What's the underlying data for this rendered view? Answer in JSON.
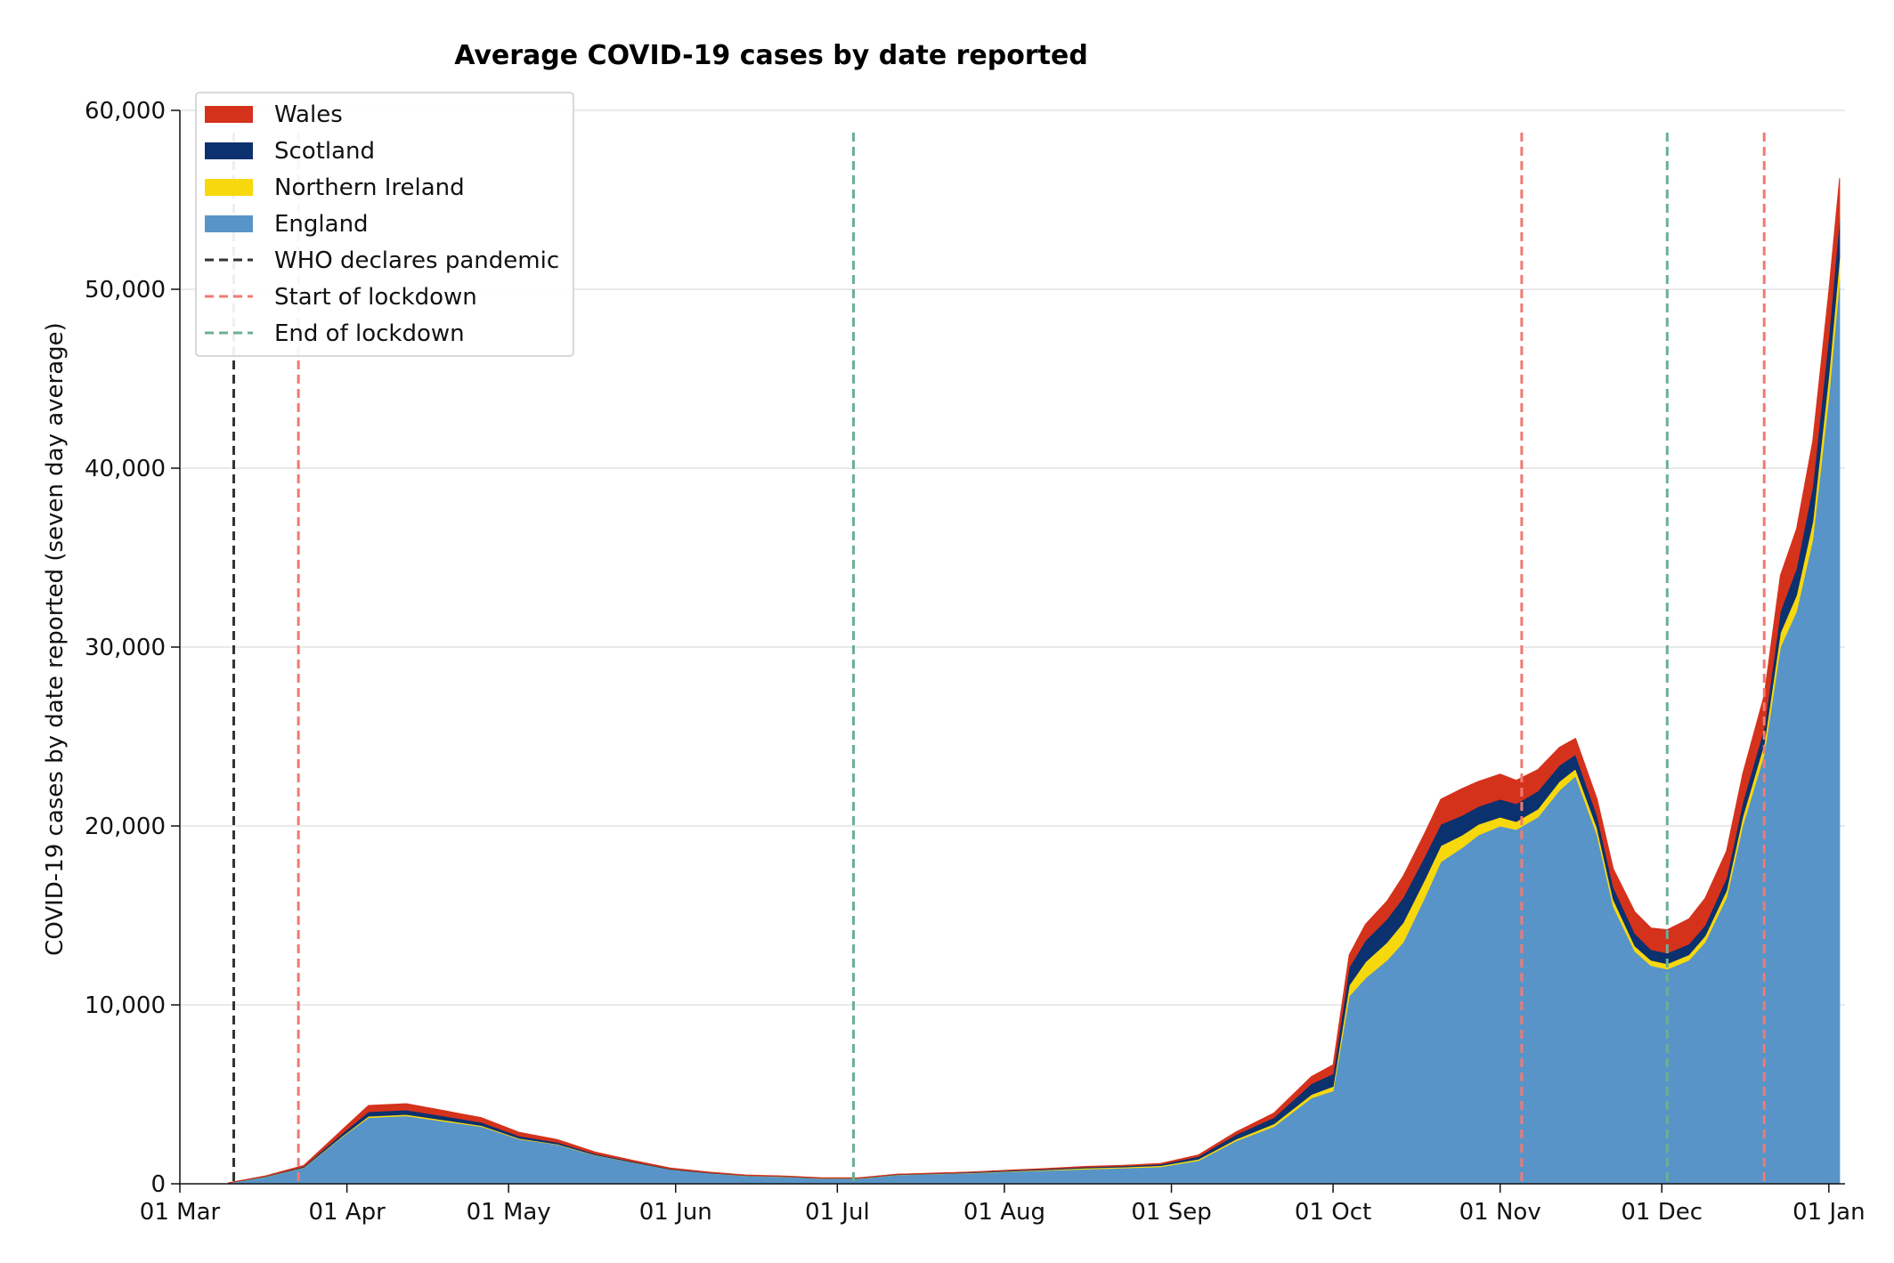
{
  "chart_data": {
    "type": "area",
    "stacked": true,
    "title": "Average COVID-19 cases by date reported",
    "xlabel": "",
    "ylabel": "COVID-19 cases by date reported (seven day average)",
    "ylim": [
      0,
      60000
    ],
    "y_ticks": [
      0,
      10000,
      20000,
      30000,
      40000,
      50000,
      60000
    ],
    "y_tick_labels": [
      "0",
      "10,000",
      "20,000",
      "30,000",
      "40,000",
      "50,000",
      "60,000"
    ],
    "x_range": [
      "2020-03-01",
      "2021-01-04"
    ],
    "x_ticks": [
      "2020-03-01",
      "2020-04-01",
      "2020-05-01",
      "2020-06-01",
      "2020-07-01",
      "2020-08-01",
      "2020-09-01",
      "2020-10-01",
      "2020-11-01",
      "2020-12-01",
      "2021-01-01"
    ],
    "x_tick_labels": [
      "01 Mar",
      "01 Apr",
      "01 May",
      "01 Jun",
      "01 Jul",
      "01 Aug",
      "01 Sep",
      "01 Oct",
      "01 Nov",
      "01 Dec",
      "01 Jan"
    ],
    "grid": "horizontal",
    "legend_position": "top-left",
    "x": [
      "2020-03-10",
      "2020-03-17",
      "2020-03-24",
      "2020-03-31",
      "2020-04-05",
      "2020-04-12",
      "2020-04-19",
      "2020-04-26",
      "2020-05-03",
      "2020-05-10",
      "2020-05-17",
      "2020-05-24",
      "2020-05-31",
      "2020-06-07",
      "2020-06-14",
      "2020-06-21",
      "2020-06-28",
      "2020-07-05",
      "2020-07-12",
      "2020-07-19",
      "2020-07-26",
      "2020-08-02",
      "2020-08-09",
      "2020-08-16",
      "2020-08-23",
      "2020-08-30",
      "2020-09-06",
      "2020-09-13",
      "2020-09-20",
      "2020-09-27",
      "2020-10-01",
      "2020-10-04",
      "2020-10-07",
      "2020-10-11",
      "2020-10-14",
      "2020-10-18",
      "2020-10-21",
      "2020-10-25",
      "2020-10-28",
      "2020-11-01",
      "2020-11-04",
      "2020-11-08",
      "2020-11-12",
      "2020-11-15",
      "2020-11-19",
      "2020-11-22",
      "2020-11-26",
      "2020-11-29",
      "2020-12-02",
      "2020-12-06",
      "2020-12-09",
      "2020-12-13",
      "2020-12-16",
      "2020-12-20",
      "2020-12-23",
      "2020-12-26",
      "2020-12-29",
      "2021-01-01",
      "2021-01-03"
    ],
    "series": [
      {
        "name": "England",
        "color": "#5894c8",
        "values": [
          50,
          400,
          900,
          2600,
          3700,
          3800,
          3500,
          3200,
          2500,
          2200,
          1600,
          1200,
          800,
          600,
          450,
          400,
          300,
          300,
          500,
          550,
          600,
          680,
          750,
          820,
          880,
          950,
          1300,
          2400,
          3200,
          4800,
          5200,
          10500,
          11500,
          12500,
          13500,
          16000,
          18000,
          18800,
          19500,
          20000,
          19800,
          20500,
          22000,
          22800,
          19500,
          15500,
          13000,
          12200,
          12000,
          12500,
          13500,
          16000,
          20000,
          24000,
          30000,
          32000,
          36000,
          44000,
          50500
        ]
      },
      {
        "name": "Northern Ireland",
        "color": "#f7d80d",
        "values": [
          0,
          10,
          20,
          40,
          80,
          80,
          70,
          60,
          40,
          30,
          20,
          15,
          10,
          10,
          10,
          10,
          10,
          10,
          10,
          15,
          20,
          30,
          40,
          60,
          60,
          70,
          80,
          100,
          150,
          200,
          250,
          600,
          900,
          1000,
          1100,
          1000,
          900,
          700,
          600,
          500,
          450,
          450,
          500,
          400,
          400,
          400,
          300,
          300,
          300,
          300,
          350,
          400,
          500,
          600,
          800,
          900,
          1000,
          1200,
          1300
        ]
      },
      {
        "name": "Scotland",
        "color": "#0b316e",
        "values": [
          0,
          20,
          50,
          150,
          250,
          250,
          220,
          180,
          130,
          100,
          60,
          40,
          30,
          20,
          15,
          15,
          15,
          15,
          15,
          20,
          30,
          40,
          50,
          60,
          60,
          80,
          150,
          250,
          350,
          600,
          700,
          1000,
          1200,
          1300,
          1400,
          1300,
          1200,
          1100,
          1000,
          1000,
          1000,
          1000,
          900,
          800,
          700,
          700,
          700,
          600,
          600,
          600,
          600,
          700,
          800,
          900,
          1200,
          1500,
          2000,
          2200,
          2200
        ]
      },
      {
        "name": "Wales",
        "color": "#d5321c",
        "values": [
          0,
          20,
          60,
          200,
          350,
          350,
          300,
          250,
          200,
          150,
          100,
          60,
          40,
          30,
          20,
          15,
          15,
          10,
          10,
          10,
          10,
          15,
          20,
          30,
          30,
          40,
          80,
          150,
          250,
          400,
          500,
          700,
          900,
          1000,
          1200,
          1300,
          1400,
          1500,
          1400,
          1400,
          1300,
          1200,
          1000,
          900,
          900,
          1000,
          1200,
          1200,
          1300,
          1400,
          1500,
          1500,
          1600,
          1800,
          2000,
          2200,
          2500,
          2500,
          2200
        ]
      }
    ],
    "reference_lines": [
      {
        "name": "WHO declares pandemic",
        "color": "#333333",
        "dates": [
          "2020-03-11"
        ]
      },
      {
        "name": "Start of lockdown",
        "color": "#f07a72",
        "dates": [
          "2020-03-23",
          "2020-11-05",
          "2020-12-20"
        ]
      },
      {
        "name": "End of lockdown",
        "color": "#6cb092",
        "dates": [
          "2020-07-04",
          "2020-12-02"
        ]
      }
    ],
    "legend_order": [
      "Wales",
      "Scotland",
      "Northern Ireland",
      "England",
      "WHO declares pandemic",
      "Start of lockdown",
      "End of lockdown"
    ]
  }
}
